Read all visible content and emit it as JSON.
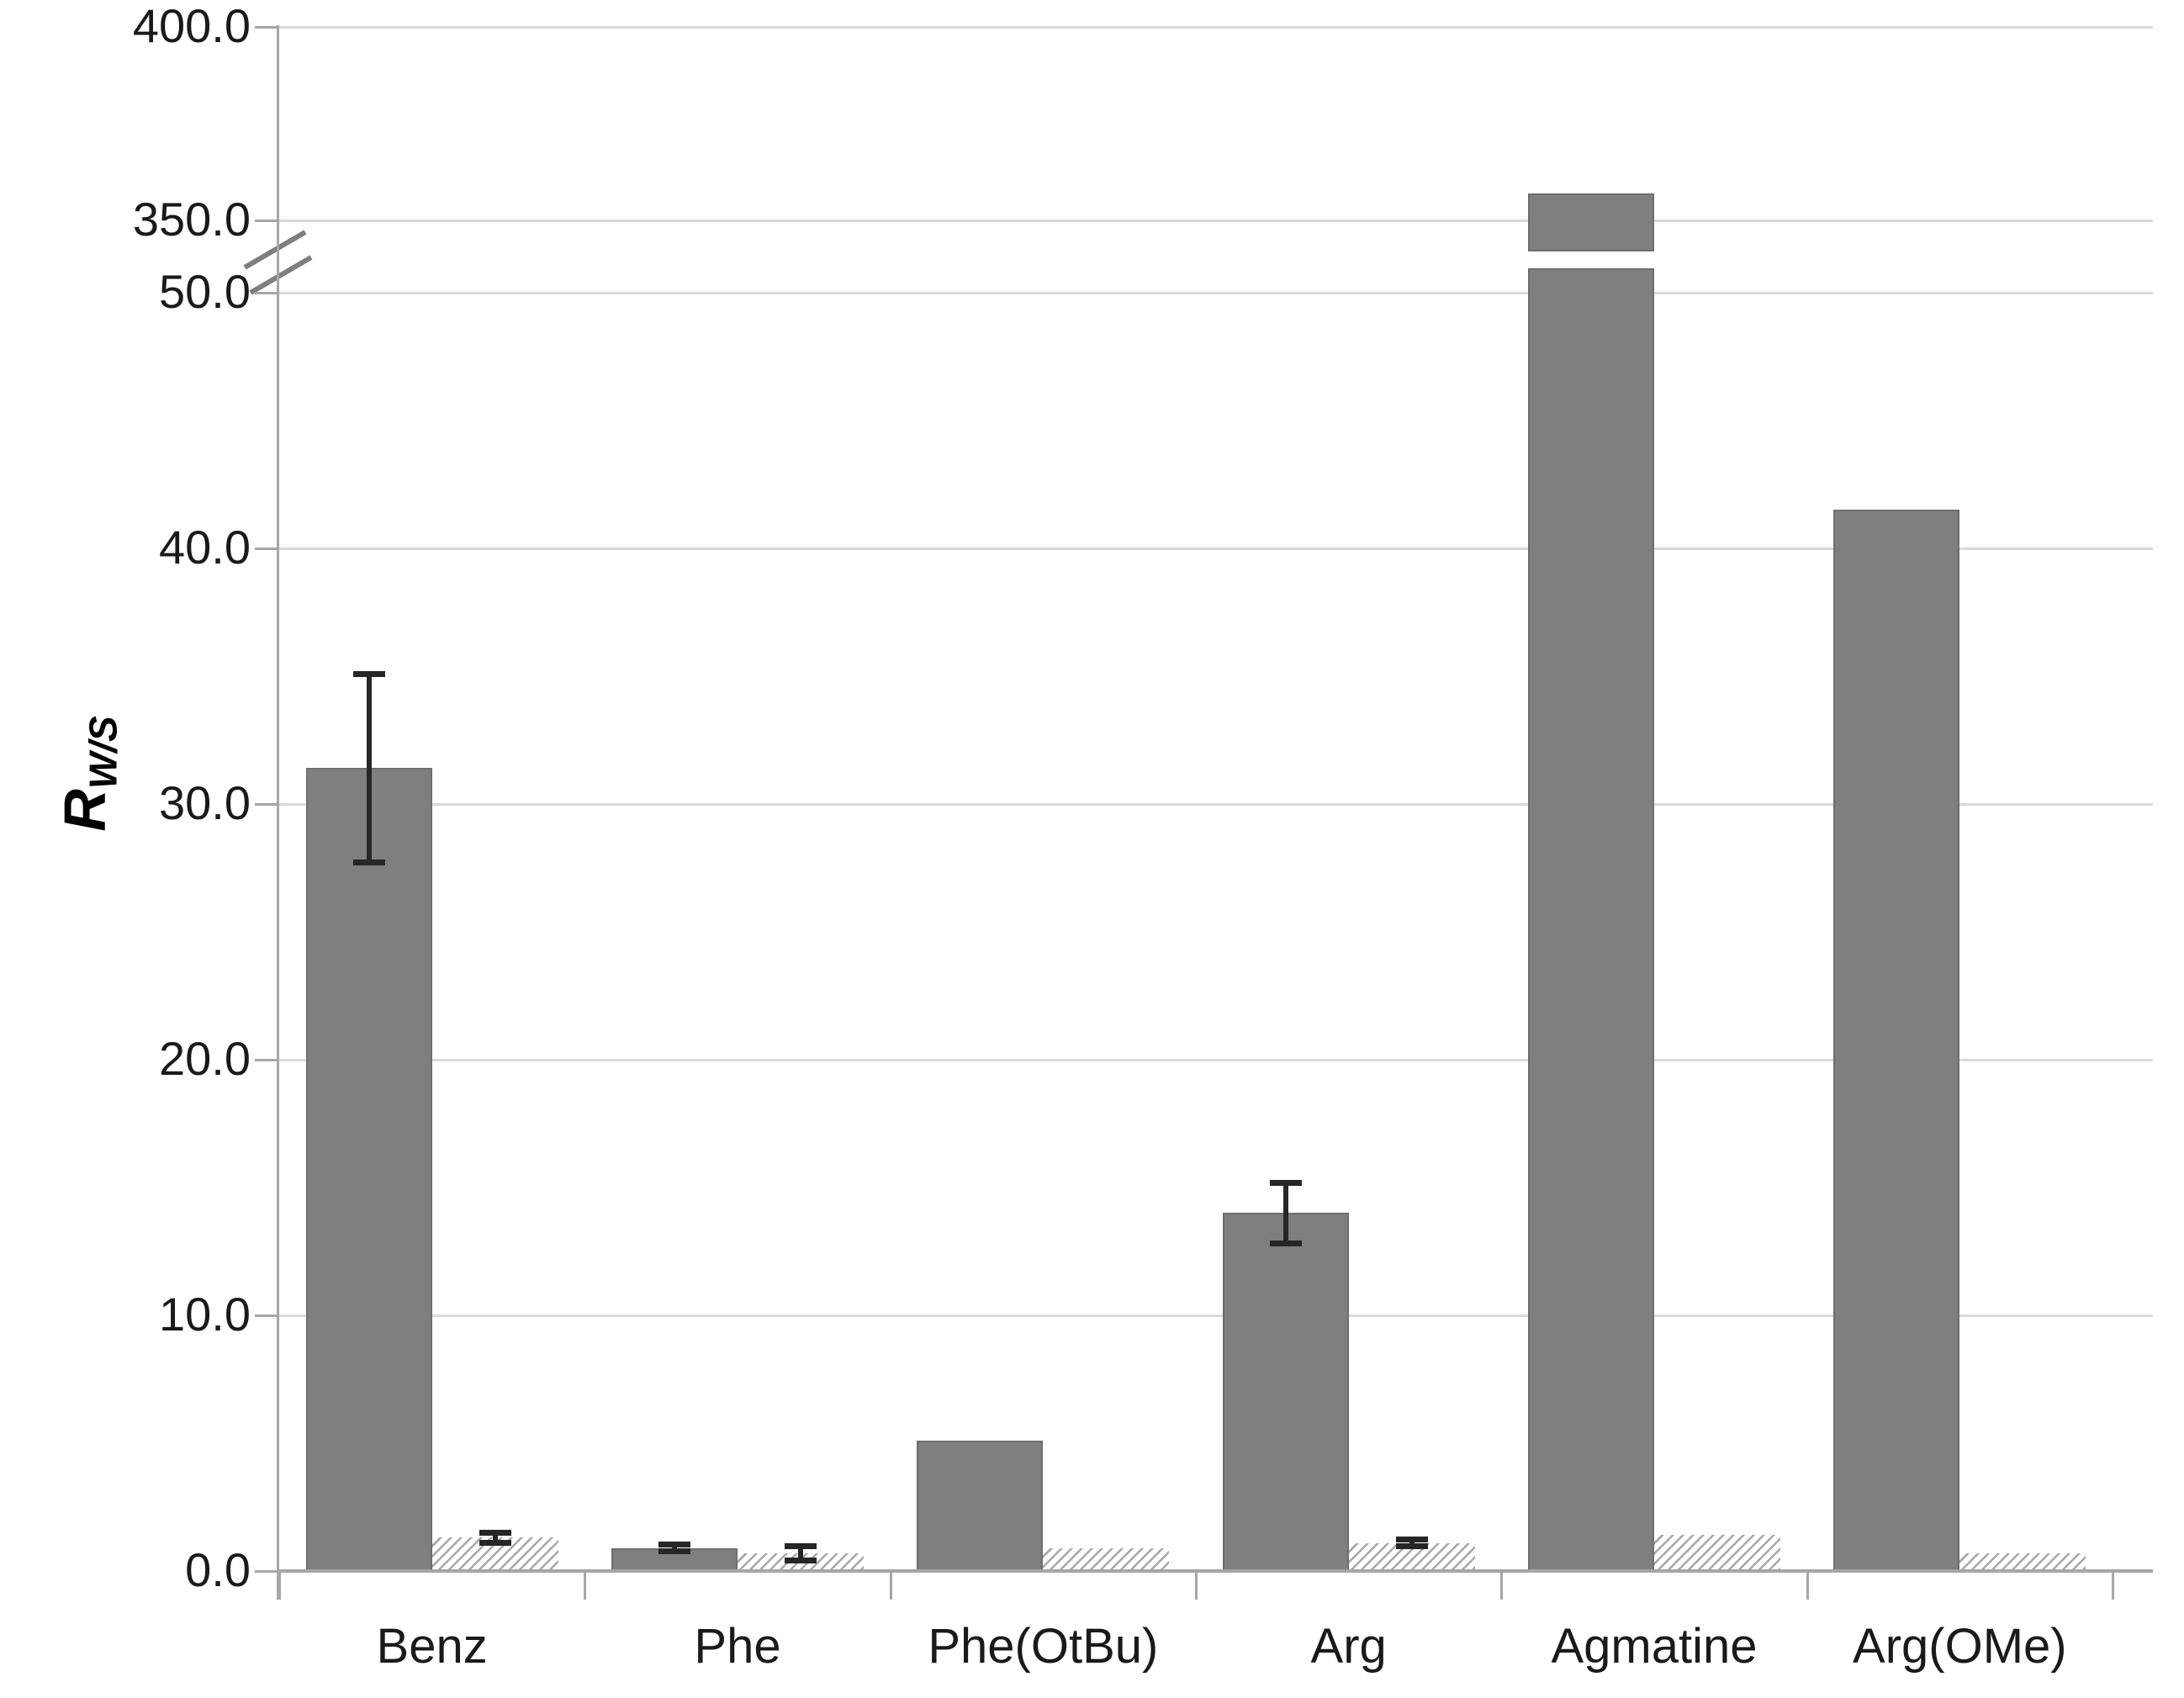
{
  "chart_data": {
    "type": "bar",
    "title": "",
    "ylabel": {
      "main": "R",
      "sub": "W/S"
    },
    "categories": [
      "Benz",
      "Phe",
      "Phe(OtBu)",
      "Arg",
      "Agmatine",
      "Arg(OMe)"
    ],
    "series": [
      {
        "name": "solid-gray-bar",
        "style": "solid",
        "color": "#7f7f7f",
        "values": [
          31.4,
          0.9,
          5.1,
          14.0,
          357.0,
          41.5
        ],
        "errors": [
          3.7,
          0.15,
          null,
          1.2,
          null,
          null
        ]
      },
      {
        "name": "hatched-bar",
        "style": "hatched",
        "color": "#a8a8a8",
        "values": [
          1.3,
          0.7,
          0.9,
          1.1,
          1.4,
          0.7
        ],
        "errors": [
          0.2,
          0.3,
          null,
          0.15,
          null,
          null
        ]
      }
    ],
    "y_axis": {
      "broken": true,
      "lower_tick_labels": [
        "0.0",
        "10.0",
        "20.0",
        "30.0",
        "40.0",
        "50.0"
      ],
      "lower_tick_values": [
        0,
        10,
        20,
        30,
        40,
        50
      ],
      "upper_tick_labels": [
        "350.0",
        "400.0"
      ],
      "upper_tick_values": [
        350,
        400
      ],
      "lower_range": [
        0,
        50
      ],
      "upper_range": [
        350,
        400
      ]
    },
    "grid": true,
    "legend": null
  },
  "colors": {
    "solid_bar": "#7f7f7f",
    "bar_border": "#6e6e6e",
    "hatch_stripe": "#a8a8a8",
    "gridline": "#d9d9d9",
    "axis": "#a6a6a6",
    "text": "#1a1a1a",
    "error_bar": "#262626",
    "background": "#ffffff"
  }
}
